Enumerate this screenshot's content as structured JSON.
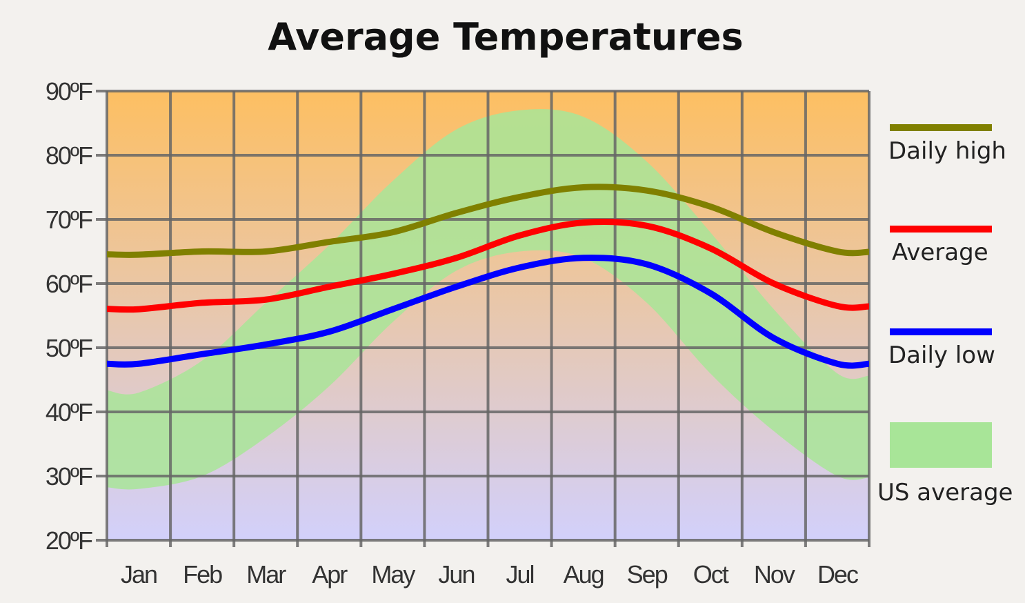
{
  "chart_data": {
    "type": "line",
    "title": "Average Temperatures",
    "categories": [
      "Jan",
      "Feb",
      "Mar",
      "Apr",
      "May",
      "Jun",
      "Jul",
      "Aug",
      "Sep",
      "Oct",
      "Nov",
      "Dec"
    ],
    "y_ticks": [
      "20ºF",
      "30ºF",
      "40ºF",
      "50ºF",
      "60ºF",
      "70ºF",
      "80ºF",
      "90ºF"
    ],
    "ylim": [
      20,
      90
    ],
    "yunit": "ºF",
    "grid": true,
    "legend_position": "right",
    "series": [
      {
        "name": "Daily high",
        "color": "#808000",
        "values": [
          64.5,
          65,
          65,
          66.5,
          68,
          71,
          73.5,
          75,
          74.5,
          72,
          68,
          65
        ]
      },
      {
        "name": "Average",
        "color": "#ff0000",
        "values": [
          56,
          57,
          57.5,
          59.5,
          61.5,
          64,
          67.5,
          69.5,
          69,
          65.5,
          60,
          56.5
        ]
      },
      {
        "name": "Daily low",
        "color": "#0000ff",
        "values": [
          47.5,
          49,
          50.5,
          52.5,
          56,
          59.5,
          62.5,
          64,
          63,
          58.5,
          51.5,
          47.5
        ]
      }
    ],
    "band": {
      "name": "US average",
      "color": "#a8e598",
      "upper": [
        43,
        48,
        57,
        66,
        76,
        84,
        87,
        86,
        79,
        68,
        56,
        46
      ],
      "lower": [
        28,
        30,
        36,
        44,
        54,
        62,
        65,
        64,
        57,
        46,
        37,
        30
      ]
    },
    "background_colors": {
      "top": "#fdbf62",
      "bottom": "#d2d0fb"
    }
  }
}
